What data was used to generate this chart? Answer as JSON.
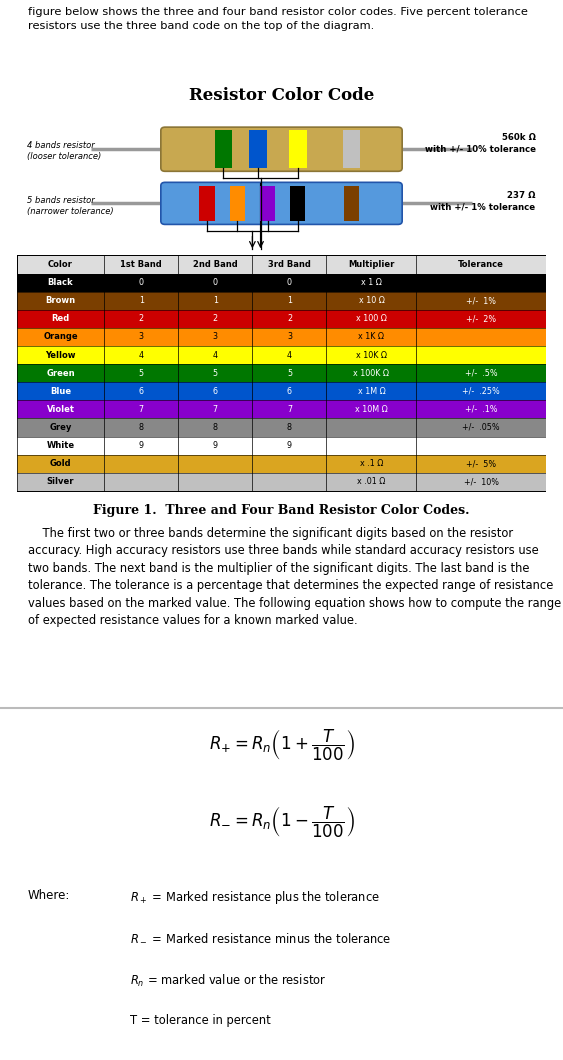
{
  "title_text": "figure below shows the three and four band resistor color codes. Five percent tolerance\nresistors use the three band code on the top of the diagram.",
  "chart_title": "Resistor Color Code",
  "figure_caption": "Figure 1.  Three and Four Band Resistor Color Codes.",
  "body_text": "    The first two or three bands determine the significant digits based on the resistor accuracy. High accuracy resistors use three bands while standard accuracy resistors use two bands. The next band is the multiplier of the significant digits. The last band is the tolerance. The tolerance is a percentage that determines the expected range of resistance values based on the marked value. The following equation shows how to compute the range of expected resistance values for a known marked value.",
  "where_label": "Where:",
  "where_lines": [
    "$R_+$ = Marked resistance plus the tolerance",
    "$R_-$ = Marked resistance minus the tolerance",
    "$R_n$ = marked value or the resistor",
    "T = tolerance in percent"
  ],
  "resistor4_label": "4 bands resistor\n(looser tolerance)",
  "resistor5_label": "5 bands resistor\n(narrower tolerance)",
  "resistor4_value": "560k Ω\nwith +/- 10% tolerance",
  "resistor5_value": "237 Ω\nwith +/- 1% tolerance",
  "table_colors": {
    "Black": {
      "bg": "#000000",
      "fg": "#ffffff",
      "band1": "0",
      "band2": "0",
      "band3": "0",
      "mult": "x 1 Ω",
      "tol": ""
    },
    "Brown": {
      "bg": "#7B3F00",
      "fg": "#ffffff",
      "band1": "1",
      "band2": "1",
      "band3": "1",
      "mult": "x 10 Ω",
      "tol": "+/-  1%"
    },
    "Red": {
      "bg": "#CC0000",
      "fg": "#ffffff",
      "band1": "2",
      "band2": "2",
      "band3": "2",
      "mult": "x 100 Ω",
      "tol": "+/-  2%"
    },
    "Orange": {
      "bg": "#FF8C00",
      "fg": "#000000",
      "band1": "3",
      "band2": "3",
      "band3": "3",
      "mult": "x 1K Ω",
      "tol": ""
    },
    "Yellow": {
      "bg": "#FFFF00",
      "fg": "#000000",
      "band1": "4",
      "band2": "4",
      "band3": "4",
      "mult": "x 10K Ω",
      "tol": ""
    },
    "Green": {
      "bg": "#007700",
      "fg": "#ffffff",
      "band1": "5",
      "band2": "5",
      "band3": "5",
      "mult": "x 100K Ω",
      "tol": "+/-  .5%"
    },
    "Blue": {
      "bg": "#0055CC",
      "fg": "#ffffff",
      "band1": "6",
      "band2": "6",
      "band3": "6",
      "mult": "x 1M Ω",
      "tol": "+/-  .25%"
    },
    "Violet": {
      "bg": "#8800CC",
      "fg": "#ffffff",
      "band1": "7",
      "band2": "7",
      "band3": "7",
      "mult": "x 10M Ω",
      "tol": "+/-  .1%"
    },
    "Grey": {
      "bg": "#888888",
      "fg": "#000000",
      "band1": "8",
      "band2": "8",
      "band3": "8",
      "mult": "",
      "tol": "+/-  .05%"
    },
    "White": {
      "bg": "#FFFFFF",
      "fg": "#000000",
      "band1": "9",
      "band2": "9",
      "band3": "9",
      "mult": "",
      "tol": ""
    },
    "Gold": {
      "bg": "#DAA520",
      "fg": "#000000",
      "band1": "",
      "band2": "",
      "band3": "",
      "mult": "x .1 Ω",
      "tol": "+/-  5%"
    },
    "Silver": {
      "bg": "#C0C0C0",
      "fg": "#000000",
      "band1": "",
      "band2": "",
      "band3": "",
      "mult": "x .01 Ω",
      "tol": "+/-  10%"
    }
  },
  "color_order": [
    "Black",
    "Brown",
    "Red",
    "Orange",
    "Yellow",
    "Green",
    "Blue",
    "Violet",
    "Grey",
    "White",
    "Gold",
    "Silver"
  ],
  "col_names": [
    "Color",
    "1st Band",
    "2nd Band",
    "3rd Band",
    "Multiplier",
    "Tolerance"
  ],
  "bg_color": "#ffffff"
}
